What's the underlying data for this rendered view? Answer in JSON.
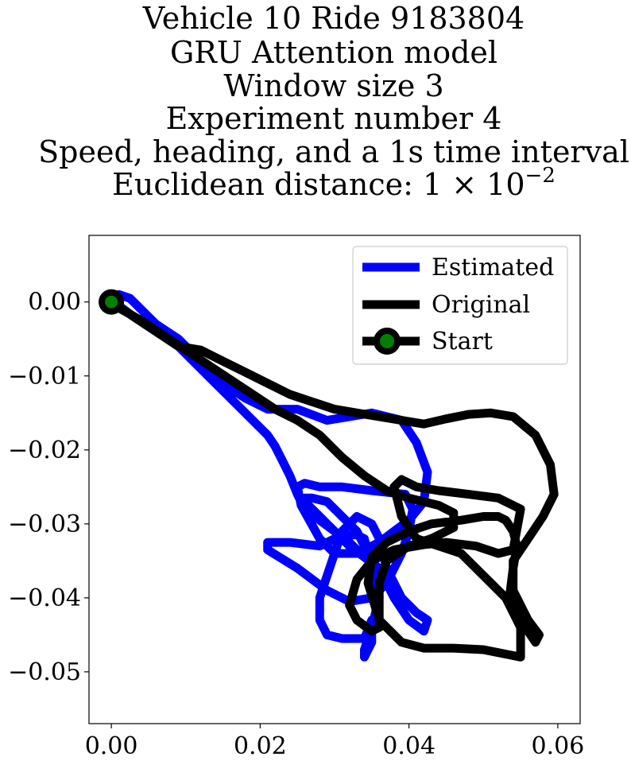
{
  "title_lines": [
    "Vehicle 10 Ride 9183804",
    "GRU Attention model",
    "Window size 3",
    "Experiment number 4",
    "Speed, heading, and a 1s time interval"
  ],
  "title_distance_prefix": "Euclidean distance: 1 × 10",
  "title_distance_exponent": "−2",
  "chart_data": {
    "type": "line",
    "title": "Vehicle 10 Ride 9183804 / GRU Attention model / Window size 3 / Experiment number 4 / Speed, heading, and a 1s time interval / Euclidean distance: 1 × 10^−2",
    "xlabel": "",
    "ylabel": "",
    "xlim": [
      -0.003,
      0.063
    ],
    "ylim": [
      -0.057,
      0.009
    ],
    "x_ticks": [
      0.0,
      0.02,
      0.04,
      0.06
    ],
    "x_tick_labels": [
      "0.00",
      "0.02",
      "0.04",
      "0.06"
    ],
    "y_ticks": [
      0.0,
      -0.01,
      -0.02,
      -0.03,
      -0.04,
      -0.05
    ],
    "y_tick_labels": [
      "0.00",
      "−0.01",
      "−0.02",
      "−0.03",
      "−0.04",
      "−0.05"
    ],
    "grid": false,
    "legend_position": "top-right",
    "series": [
      {
        "name": "Estimated",
        "color": "#0000ff",
        "x": [
          0.0,
          0.001,
          0.0025,
          0.004,
          0.006,
          0.009,
          0.012,
          0.015,
          0.018,
          0.021,
          0.025,
          0.029,
          0.032,
          0.035,
          0.039,
          0.041,
          0.0425,
          0.042,
          0.04,
          0.038,
          0.036,
          0.033,
          0.03,
          0.028,
          0.0255,
          0.025,
          0.026,
          0.028,
          0.031,
          0.035,
          0.0395,
          0.0405,
          0.04,
          0.039,
          0.037,
          0.035,
          0.032,
          0.029,
          0.025,
          0.021,
          0.021,
          0.024,
          0.028,
          0.031,
          0.033,
          0.034,
          0.035,
          0.036,
          0.035,
          0.034,
          0.034,
          0.035,
          0.035,
          0.034,
          0.031,
          0.029,
          0.028,
          0.028,
          0.029,
          0.03,
          0.031,
          0.033,
          0.035,
          0.036,
          0.037,
          0.039,
          0.041,
          0.0425,
          0.042,
          0.04,
          0.038,
          0.036,
          0.032,
          0.029,
          0.027,
          0.026,
          0.026,
          0.027,
          0.029,
          0.031,
          0.033,
          0.034,
          0.034,
          0.033,
          0.032,
          0.03,
          0.028,
          0.026,
          0.025,
          0.024,
          0.023,
          0.022,
          0.021,
          0.019,
          0.017,
          0.015,
          0.013,
          0.011,
          0.009,
          0.006,
          0.003,
          0.001,
          0.0
        ],
        "y": [
          0.0,
          0.001,
          0.0005,
          -0.001,
          -0.003,
          -0.005,
          -0.008,
          -0.011,
          -0.013,
          -0.0145,
          -0.0145,
          -0.016,
          -0.0155,
          -0.015,
          -0.016,
          -0.019,
          -0.023,
          -0.027,
          -0.0295,
          -0.031,
          -0.0325,
          -0.034,
          -0.034,
          -0.032,
          -0.0275,
          -0.025,
          -0.0245,
          -0.025,
          -0.025,
          -0.0255,
          -0.026,
          -0.028,
          -0.031,
          -0.034,
          -0.038,
          -0.04,
          -0.0405,
          -0.039,
          -0.036,
          -0.0335,
          -0.0325,
          -0.0325,
          -0.033,
          -0.0315,
          -0.0315,
          -0.032,
          -0.036,
          -0.04,
          -0.044,
          -0.047,
          -0.048,
          -0.046,
          -0.043,
          -0.0455,
          -0.0455,
          -0.045,
          -0.043,
          -0.04,
          -0.037,
          -0.034,
          -0.031,
          -0.029,
          -0.03,
          -0.032,
          -0.036,
          -0.04,
          -0.042,
          -0.043,
          -0.0445,
          -0.043,
          -0.04,
          -0.036,
          -0.033,
          -0.03,
          -0.028,
          -0.027,
          -0.0265,
          -0.0265,
          -0.027,
          -0.029,
          -0.031,
          -0.033,
          -0.034,
          -0.0335,
          -0.0325,
          -0.031,
          -0.0295,
          -0.028,
          -0.026,
          -0.0235,
          -0.0215,
          -0.0195,
          -0.018,
          -0.016,
          -0.014,
          -0.012,
          -0.01,
          -0.008,
          -0.006,
          -0.004,
          -0.002,
          -0.0005,
          0.0
        ]
      },
      {
        "name": "Original",
        "color": "#000000",
        "x": [
          0.0,
          0.003,
          0.006,
          0.009,
          0.012,
          0.015,
          0.018,
          0.021,
          0.024,
          0.027,
          0.03,
          0.033,
          0.036,
          0.039,
          0.042,
          0.045,
          0.048,
          0.051,
          0.054,
          0.057,
          0.059,
          0.0595,
          0.058,
          0.056,
          0.054,
          0.054,
          0.055,
          0.056,
          0.0575,
          0.057,
          0.055,
          0.0535,
          0.054,
          0.0545,
          0.054,
          0.053,
          0.052,
          0.05,
          0.047,
          0.043,
          0.04,
          0.037,
          0.035,
          0.0345,
          0.036,
          0.039,
          0.042,
          0.046,
          0.05,
          0.055,
          0.055,
          0.053,
          0.05,
          0.047,
          0.044,
          0.041,
          0.039,
          0.038,
          0.039,
          0.041,
          0.044,
          0.048,
          0.052,
          0.055,
          0.054,
          0.052,
          0.049,
          0.045,
          0.042,
          0.038,
          0.035,
          0.033,
          0.032,
          0.033,
          0.035,
          0.036,
          0.036,
          0.037,
          0.04,
          0.043,
          0.046,
          0.046,
          0.044,
          0.042,
          0.04,
          0.037,
          0.034,
          0.031,
          0.028,
          0.025,
          0.022,
          0.019,
          0.016,
          0.013,
          0.01,
          0.007,
          0.004,
          0.001,
          0.0
        ],
        "y": [
          0.0,
          -0.002,
          -0.004,
          -0.006,
          -0.0065,
          -0.008,
          -0.0095,
          -0.011,
          -0.0125,
          -0.0135,
          -0.0145,
          -0.015,
          -0.0155,
          -0.016,
          -0.0165,
          -0.0158,
          -0.0152,
          -0.015,
          -0.0155,
          -0.018,
          -0.022,
          -0.026,
          -0.029,
          -0.032,
          -0.035,
          -0.039,
          -0.041,
          -0.043,
          -0.045,
          -0.046,
          -0.043,
          -0.04,
          -0.036,
          -0.033,
          -0.031,
          -0.0295,
          -0.029,
          -0.029,
          -0.0295,
          -0.03,
          -0.031,
          -0.0325,
          -0.0345,
          -0.038,
          -0.043,
          -0.046,
          -0.0468,
          -0.0468,
          -0.047,
          -0.048,
          -0.044,
          -0.04,
          -0.037,
          -0.034,
          -0.033,
          -0.032,
          -0.029,
          -0.025,
          -0.024,
          -0.025,
          -0.0255,
          -0.026,
          -0.0265,
          -0.028,
          -0.0335,
          -0.034,
          -0.033,
          -0.0325,
          -0.0328,
          -0.0335,
          -0.035,
          -0.0375,
          -0.041,
          -0.043,
          -0.0445,
          -0.044,
          -0.038,
          -0.035,
          -0.033,
          -0.032,
          -0.0305,
          -0.0285,
          -0.0275,
          -0.027,
          -0.0265,
          -0.0255,
          -0.0235,
          -0.021,
          -0.018,
          -0.016,
          -0.0145,
          -0.0125,
          -0.0105,
          -0.0085,
          -0.0065,
          -0.0045,
          -0.0025,
          -0.0008,
          0.0
        ]
      },
      {
        "name": "Start",
        "color": "#000000",
        "marker_face": "#008000",
        "x": [
          0.0
        ],
        "y": [
          0.0
        ]
      }
    ]
  },
  "legend": {
    "items": [
      {
        "label": "Estimated",
        "color": "#0000ff"
      },
      {
        "label": "Original",
        "color": "#000000"
      },
      {
        "label": "Start",
        "color": "#000000",
        "marker_face": "#008000"
      }
    ]
  }
}
